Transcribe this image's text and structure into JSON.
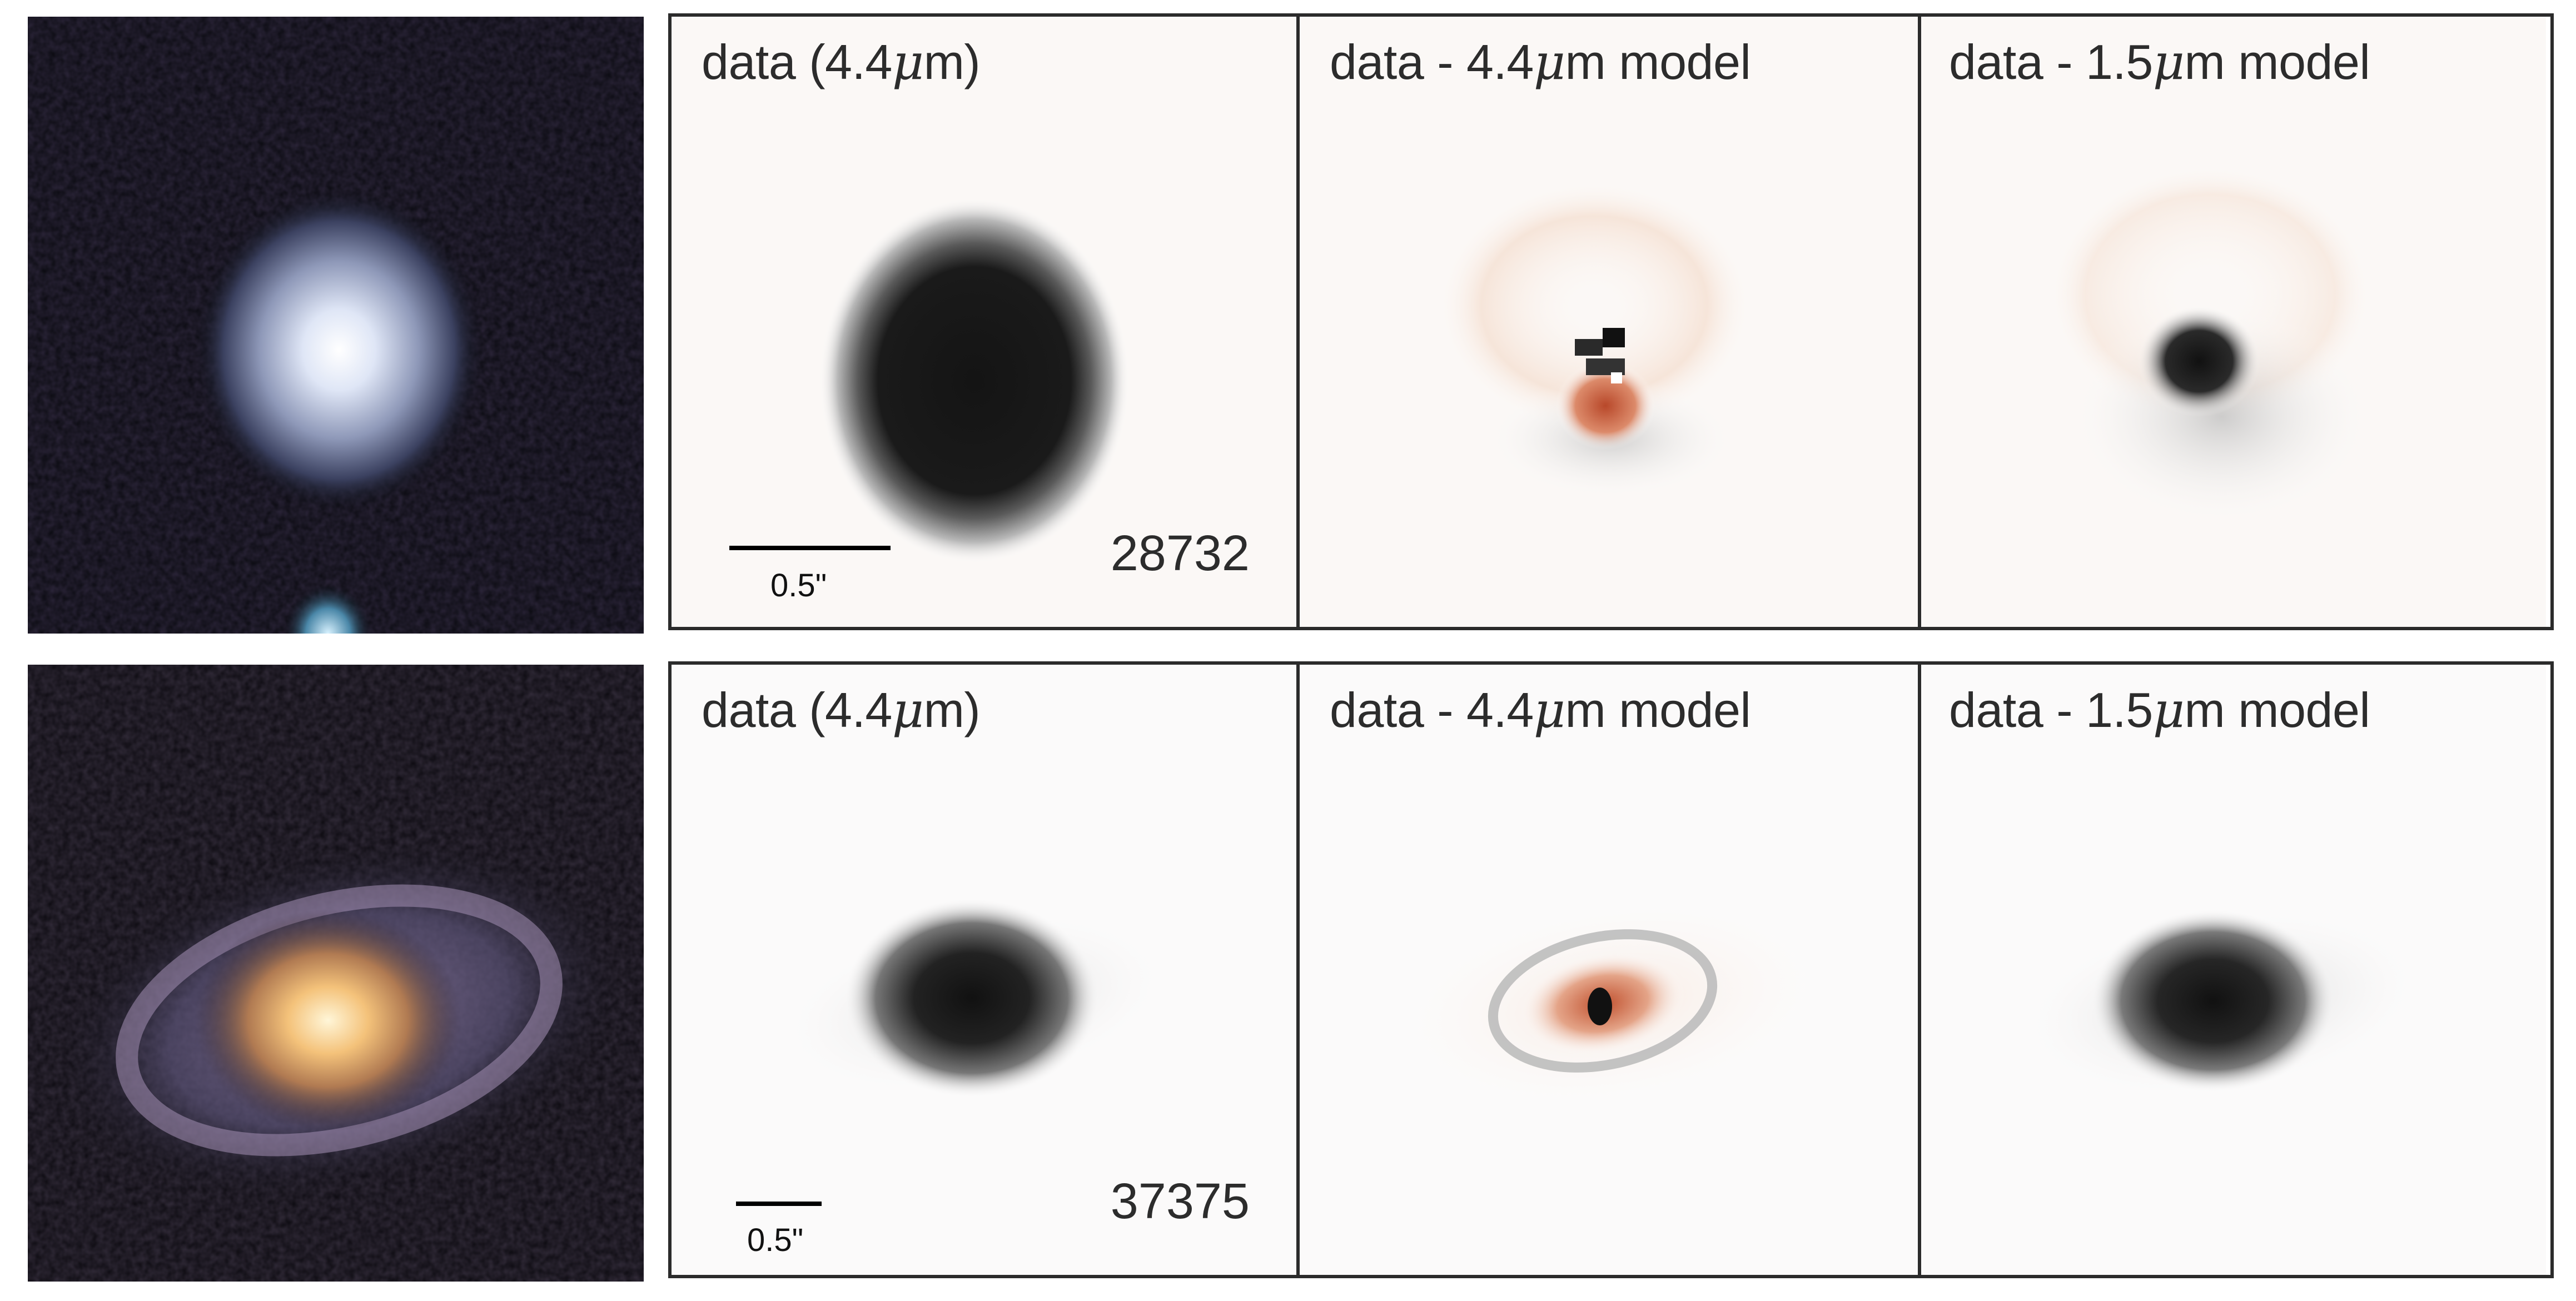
{
  "rows": [
    {
      "object_id": "28732",
      "scale_label": "0.5\"",
      "panels": [
        {
          "title_pre": "data (4.4",
          "title_mu": "μ",
          "title_post": "m)"
        },
        {
          "title_pre": "data - 4.4",
          "title_mu": "μ",
          "title_post": "m model"
        },
        {
          "title_pre": "data - 1.5",
          "title_mu": "μ",
          "title_post": "m model"
        }
      ]
    },
    {
      "object_id": "37375",
      "scale_label": "0.5\"",
      "panels": [
        {
          "title_pre": "data (4.4",
          "title_mu": "μ",
          "title_post": "m)"
        },
        {
          "title_pre": "data - 4.4",
          "title_mu": "μ",
          "title_post": "m model"
        },
        {
          "title_pre": "data - 1.5",
          "title_mu": "μ",
          "title_post": "m model"
        }
      ]
    }
  ],
  "colors": {
    "frame": "#2b2b2b",
    "text": "#2c2c2c",
    "residual_positive": "#c8603a",
    "data_dark": "#111111"
  }
}
